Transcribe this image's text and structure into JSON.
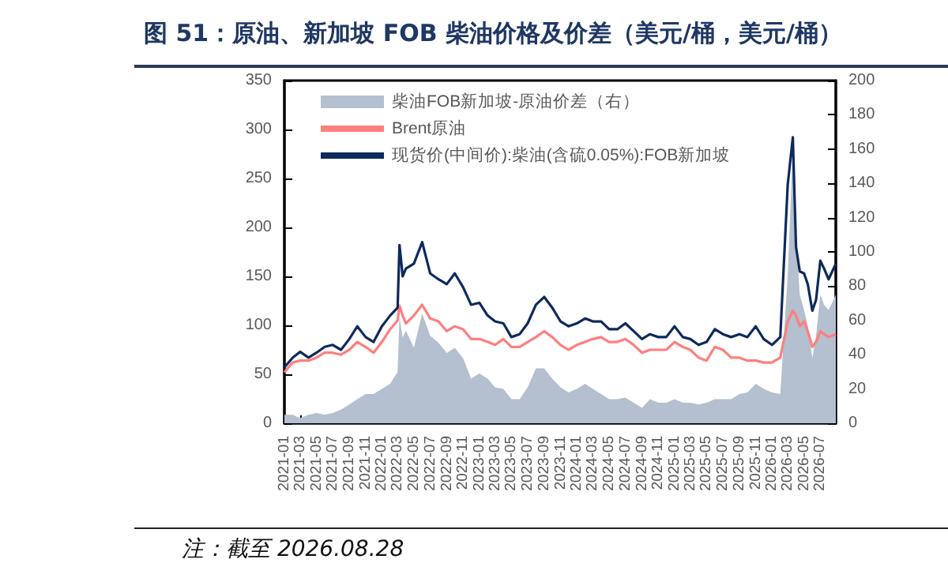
{
  "chart_data": {
    "type": "line",
    "title": "图 51：原油、新加坡 FOB 柴油价格及价差（美元/桶，美元/桶）",
    "annotations": [
      "注：截至 2026.08.28"
    ],
    "x": [
      "2021-01",
      "2021-02",
      "2021-03",
      "2021-04",
      "2021-05",
      "2021-06",
      "2021-07",
      "2021-08",
      "2021-09",
      "2021-10",
      "2021-11",
      "2021-12",
      "2022-01",
      "2022-02",
      "2022-03",
      "2022-03-08",
      "2022-03-20",
      "2022-04",
      "2022-05",
      "2022-06",
      "2022-07",
      "2022-08",
      "2022-09",
      "2022-10",
      "2022-11",
      "2022-12",
      "2023-01",
      "2023-02",
      "2023-03",
      "2023-04",
      "2023-05",
      "2023-06",
      "2023-07",
      "2023-08",
      "2023-09",
      "2023-10",
      "2023-11",
      "2023-12",
      "2024-01",
      "2024-02",
      "2024-03",
      "2024-04",
      "2024-05",
      "2024-06",
      "2024-07",
      "2024-08",
      "2024-09",
      "2024-10",
      "2024-11",
      "2024-12",
      "2025-01",
      "2025-02",
      "2025-03",
      "2025-04",
      "2025-05",
      "2025-06",
      "2025-07",
      "2025-08",
      "2025-09",
      "2025-10",
      "2025-11",
      "2025-12",
      "2026-01",
      "2026-02",
      "2026-03",
      "2026-03-20",
      "2026-04",
      "2026-04-15",
      "2026-05",
      "2026-05-15",
      "2026-06",
      "2026-06-15",
      "2026-07",
      "2026-07-15",
      "2026-08",
      "2026-08-28"
    ],
    "series": [
      {
        "name": "柴油FOB新加坡-原油价差（右）",
        "type": "area",
        "axis": "y2",
        "color": "#b4bfcf",
        "values": [
          5,
          5,
          3,
          5,
          6,
          5,
          6,
          8,
          11,
          14,
          17,
          17,
          20,
          23,
          30,
          62,
          50,
          54,
          44,
          64,
          51,
          47,
          41,
          44,
          38,
          26,
          29,
          26,
          21,
          20,
          14,
          14,
          21,
          32,
          32,
          26,
          21,
          18,
          20,
          23,
          20,
          17,
          14,
          14,
          15,
          12,
          9,
          14,
          12,
          12,
          14,
          12,
          12,
          11,
          12,
          14,
          14,
          14,
          17,
          18,
          23,
          20,
          18,
          17,
          87,
          160,
          109,
          75,
          66,
          57,
          38,
          51,
          75,
          69,
          66,
          75
        ]
      },
      {
        "name": "Brent原油",
        "color": "#ff7f7f",
        "values": [
          52,
          62,
          64,
          64,
          67,
          72,
          72,
          70,
          75,
          83,
          78,
          72,
          83,
          96,
          105,
          120,
          110,
          102,
          110,
          121,
          107,
          104,
          94,
          99,
          96,
          86,
          86,
          83,
          80,
          86,
          78,
          78,
          83,
          88,
          94,
          88,
          80,
          75,
          80,
          83,
          86,
          88,
          83,
          83,
          86,
          80,
          72,
          75,
          75,
          75,
          83,
          78,
          75,
          67,
          64,
          78,
          75,
          67,
          67,
          64,
          64,
          62,
          62,
          67,
          104,
          115,
          110,
          99,
          104,
          94,
          78,
          83,
          94,
          91,
          88,
          91
        ]
      },
      {
        "name": "现货价(中间价):柴油(含硫0.05%):FOB新加坡",
        "color": "#0d2a5e",
        "values": [
          57,
          67,
          73,
          67,
          72,
          78,
          80,
          75,
          86,
          99,
          88,
          83,
          99,
          110,
          118,
          182,
          150,
          158,
          163,
          185,
          153,
          147,
          142,
          153,
          139,
          121,
          123,
          110,
          104,
          102,
          88,
          91,
          102,
          121,
          129,
          118,
          104,
          99,
          102,
          107,
          104,
          104,
          96,
          96,
          102,
          94,
          86,
          91,
          88,
          88,
          99,
          88,
          86,
          80,
          83,
          96,
          91,
          88,
          91,
          88,
          99,
          86,
          80,
          88,
          244,
          292,
          180,
          155,
          153,
          142,
          115,
          126,
          166,
          158,
          147,
          163
        ]
      }
    ],
    "xlim": [
      "2021-01",
      "2026-08-28"
    ],
    "xticks": [
      "2021-01",
      "2021-03",
      "2021-05",
      "2021-07",
      "2021-09",
      "2021-11",
      "2022-01",
      "2022-03",
      "2022-05",
      "2022-07",
      "2022-09",
      "2022-11",
      "2023-01",
      "2023-03",
      "2023-05",
      "2023-07",
      "2023-09",
      "2023-11",
      "2024-01",
      "2024-03",
      "2024-05",
      "2024-07",
      "2024-09",
      "2024-11",
      "2025-01",
      "2025-03",
      "2025-05",
      "2025-07",
      "2025-09",
      "2025-11",
      "2026-01",
      "2026-03",
      "2026-05",
      "2026-07"
    ],
    "ylim": [
      0,
      350
    ],
    "yticks": [
      0,
      50,
      100,
      150,
      200,
      250,
      300,
      350
    ],
    "y2lim": [
      0,
      200
    ],
    "y2ticks": [
      0,
      20,
      40,
      60,
      80,
      100,
      120,
      140,
      160,
      180,
      200
    ],
    "legend": "top left",
    "grid": false,
    "marker": "none",
    "line_style": "solid"
  }
}
